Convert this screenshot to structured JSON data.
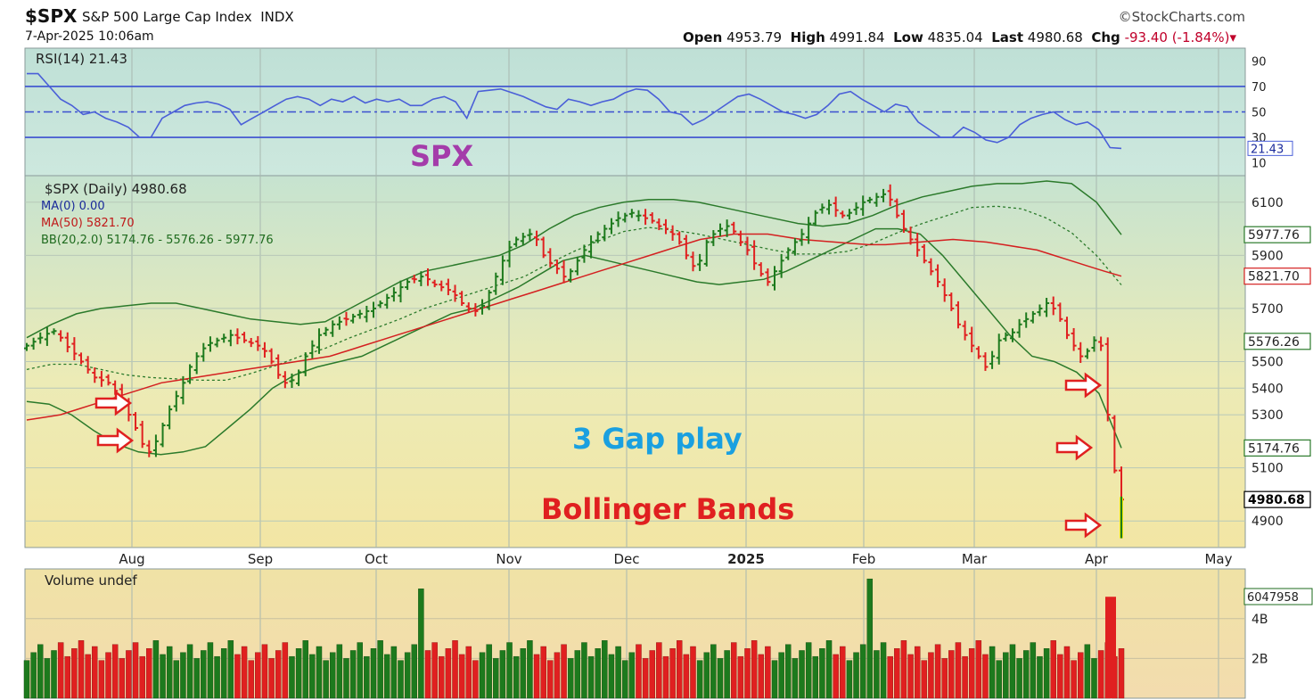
{
  "header": {
    "symbol": "$SPX",
    "name": "S&P 500 Large Cap Index",
    "exchange": "INDX",
    "brand": "©StockCharts.com",
    "datetime": "7-Apr-2025 10:06am",
    "open_label": "Open",
    "open": "4953.79",
    "high_label": "High",
    "high": "4991.84",
    "low_label": "Low",
    "low": "4835.04",
    "last_label": "Last",
    "last": "4980.68",
    "chg_label": "Chg",
    "chg": "-93.40 (-1.84%)"
  },
  "annotations": {
    "spx": "SPX",
    "gap_play": "3 Gap play",
    "bollinger": "Bollinger Bands"
  },
  "colors": {
    "rsi_line": "#4a5fd8",
    "ma50": "#d42020",
    "bollinger": "#2b7a2b",
    "up_bar": "#1d7a1d",
    "down_bar": "#e02020",
    "arrow": "#e02020",
    "spx_note": "#a43caa",
    "gap_note": "#1aa0e0",
    "bb_note": "#e02020",
    "last_marker": "#e8e800"
  },
  "chart_data": [
    {
      "type": "line",
      "panel": "RSI",
      "legend": "RSI(14) 21.43",
      "ylim": [
        0,
        100
      ],
      "yticks": [
        "90",
        "70",
        "50",
        "30",
        "10"
      ],
      "reference_lines": [
        70,
        50,
        30
      ],
      "last_label": "21.43",
      "series": [
        {
          "name": "RSI(14)",
          "values": [
            80,
            80,
            70,
            60,
            55,
            48,
            50,
            45,
            42,
            38,
            30,
            30,
            45,
            50,
            55,
            57,
            58,
            56,
            52,
            40,
            45,
            50,
            55,
            60,
            62,
            60,
            55,
            60,
            58,
            62,
            57,
            60,
            58,
            60,
            55,
            55,
            60,
            62,
            58,
            45,
            66,
            67,
            68,
            65,
            62,
            58,
            54,
            52,
            60,
            58,
            55,
            58,
            60,
            65,
            68,
            67,
            60,
            50,
            48,
            40,
            44,
            50,
            56,
            62,
            64,
            60,
            55,
            50,
            48,
            45,
            48,
            55,
            64,
            66,
            60,
            55,
            50,
            56,
            54,
            42,
            36,
            30,
            30,
            38,
            34,
            28,
            26,
            30,
            40,
            45,
            48,
            50,
            44,
            40,
            42,
            36,
            22,
            21.43
          ]
        }
      ]
    },
    {
      "type": "bar",
      "panel": "Price",
      "title": "$SPX (Daily) 4980.68",
      "legend": [
        "MA(0) 0.00",
        "MA(50) 5821.70",
        "BB(20,2.0) 5174.76 - 5576.26 - 5977.76"
      ],
      "ylim": [
        4800,
        6200
      ],
      "yticks": [
        "6100",
        "5900",
        "5700",
        "5500",
        "5400",
        "5300",
        "5100",
        "4900"
      ],
      "xticks": [
        "Aug",
        "Sep",
        "Oct",
        "Nov",
        "Dec",
        "2025",
        "Feb",
        "Mar",
        "Apr",
        "May"
      ],
      "price_labels": [
        "5977.76",
        "5821.70",
        "5576.26",
        "5174.76",
        "4980.68"
      ],
      "close": [
        5560,
        5575,
        5590,
        5605,
        5615,
        5590,
        5555,
        5530,
        5500,
        5470,
        5440,
        5430,
        5420,
        5390,
        5350,
        5300,
        5250,
        5190,
        5160,
        5200,
        5260,
        5320,
        5370,
        5420,
        5480,
        5520,
        5550,
        5570,
        5580,
        5590,
        5600,
        5590,
        5580,
        5570,
        5560,
        5540,
        5500,
        5450,
        5420,
        5430,
        5460,
        5520,
        5560,
        5600,
        5620,
        5640,
        5650,
        5660,
        5670,
        5680,
        5690,
        5700,
        5720,
        5740,
        5760,
        5780,
        5800,
        5810,
        5820,
        5810,
        5790,
        5780,
        5770,
        5750,
        5720,
        5700,
        5690,
        5710,
        5760,
        5820,
        5880,
        5930,
        5960,
        5970,
        5980,
        5960,
        5900,
        5870,
        5850,
        5820,
        5840,
        5880,
        5920,
        5950,
        5980,
        6000,
        6020,
        6040,
        6050,
        6060,
        6050,
        6040,
        6030,
        6010,
        6000,
        5980,
        5950,
        5900,
        5860,
        5880,
        5950,
        5980,
        6000,
        6010,
        5990,
        5950,
        5920,
        5870,
        5830,
        5800,
        5840,
        5880,
        5920,
        5950,
        5980,
        6020,
        6060,
        6080,
        6090,
        6070,
        6050,
        6060,
        6080,
        6100,
        6110,
        6120,
        6130,
        6110,
        6050,
        6000,
        5960,
        5920,
        5880,
        5840,
        5800,
        5750,
        5700,
        5640,
        5600,
        5560,
        5520,
        5480,
        5520,
        5580,
        5600,
        5610,
        5640,
        5660,
        5680,
        5700,
        5720,
        5700,
        5660,
        5600,
        5560,
        5520,
        5540,
        5580,
        5560,
        5300,
        5090,
        4980.68
      ],
      "series": [
        {
          "name": "MA(50)",
          "values": [
            5280,
            5290,
            5300,
            5320,
            5340,
            5360,
            5380,
            5400,
            5420,
            5430,
            5440,
            5450,
            5460,
            5470,
            5480,
            5490,
            5500,
            5510,
            5520,
            5540,
            5560,
            5580,
            5600,
            5620,
            5640,
            5660,
            5680,
            5700,
            5720,
            5740,
            5760,
            5780,
            5800,
            5820,
            5840,
            5860,
            5880,
            5900,
            5920,
            5940,
            5960,
            5970,
            5980,
            5980,
            5980,
            5970,
            5960,
            5955,
            5950,
            5945,
            5940,
            5940,
            5945,
            5950,
            5955,
            5960,
            5955,
            5950,
            5940,
            5930,
            5920,
            5900,
            5880,
            5860,
            5840,
            5821.7
          ]
        },
        {
          "name": "BB upper",
          "values": [
            5590,
            5640,
            5680,
            5700,
            5710,
            5720,
            5720,
            5700,
            5680,
            5660,
            5650,
            5640,
            5650,
            5700,
            5750,
            5800,
            5840,
            5860,
            5880,
            5900,
            5940,
            6000,
            6050,
            6080,
            6100,
            6110,
            6110,
            6100,
            6080,
            6060,
            6040,
            6020,
            6010,
            6020,
            6050,
            6090,
            6120,
            6140,
            6160,
            6170,
            6170,
            6180,
            6170,
            6100,
            5977.76
          ]
        },
        {
          "name": "BB lower",
          "values": [
            5350,
            5340,
            5300,
            5240,
            5190,
            5160,
            5150,
            5160,
            5180,
            5250,
            5320,
            5400,
            5450,
            5480,
            5500,
            5520,
            5560,
            5600,
            5640,
            5680,
            5700,
            5740,
            5780,
            5830,
            5880,
            5900,
            5880,
            5860,
            5840,
            5820,
            5800,
            5790,
            5800,
            5810,
            5840,
            5880,
            5920,
            5960,
            6000,
            6000,
            5980,
            5900,
            5800,
            5700,
            5600,
            5520,
            5500,
            5460,
            5380,
            5174.76
          ]
        }
      ]
    },
    {
      "type": "bar",
      "panel": "Volume",
      "legend": "Volume undef",
      "yticks": [
        "4B",
        "2B"
      ],
      "last_label": "6047958"
    }
  ]
}
